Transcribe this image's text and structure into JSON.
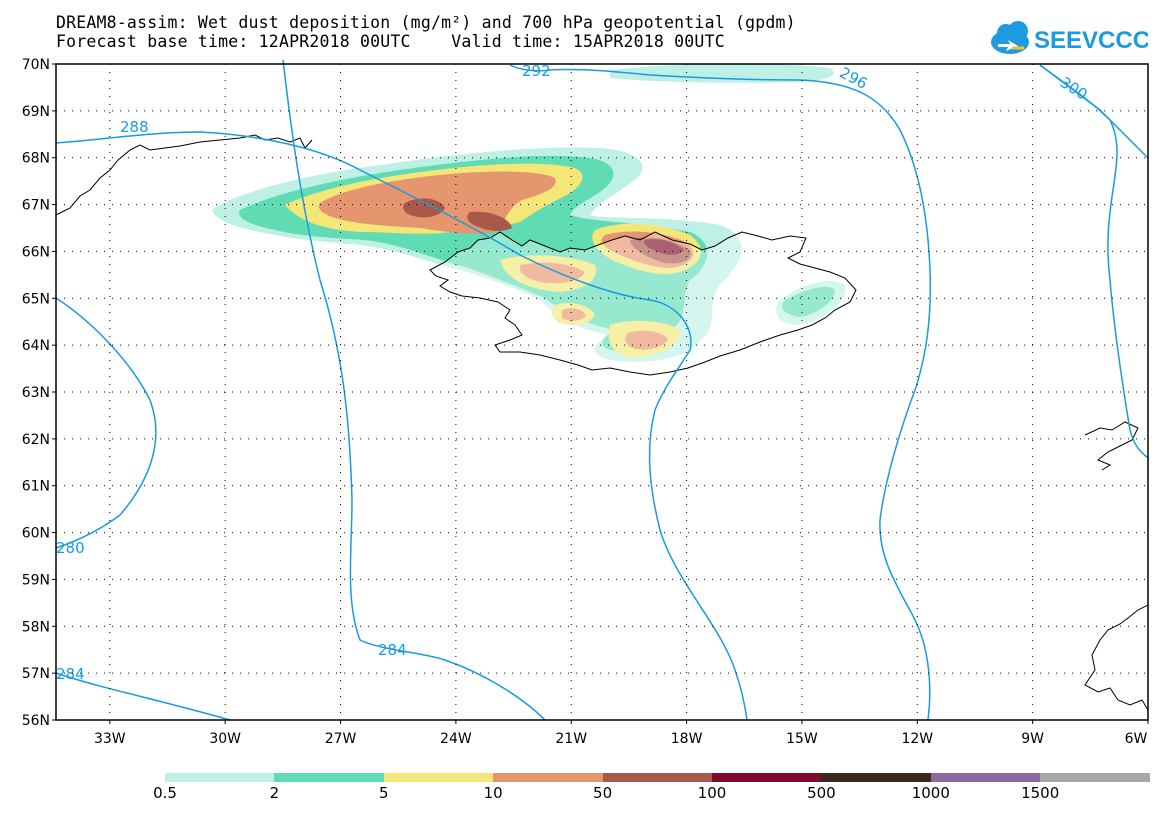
{
  "title": {
    "line1": "DREAM8-assim: Wet dust deposition (mg/m²) and 700 hPa geopotential (gpdm)",
    "line2": "Forecast base time: 12APR2018 00UTC    Valid time: 15APR2018 00UTC"
  },
  "logo": {
    "text": "SEEVCCC",
    "icon": "cloud-icon",
    "color": "#1e9be0"
  },
  "map": {
    "lat_labels": [
      "70N",
      "69N",
      "68N",
      "67N",
      "66N",
      "65N",
      "64N",
      "63N",
      "62N",
      "61N",
      "60N",
      "59N",
      "58N",
      "57N",
      "56N"
    ],
    "lon_labels": [
      "33W",
      "30W",
      "27W",
      "24W",
      "21W",
      "18W",
      "15W",
      "12W",
      "9W",
      "6W"
    ],
    "lat_range": [
      56,
      70
    ],
    "lon_range": [
      -34.4,
      -6
    ],
    "contour_color": "#1a9be0",
    "contour_labels": [
      "292",
      "296",
      "300",
      "288",
      "280",
      "284",
      "284"
    ]
  },
  "legend": {
    "labels": [
      "0.5",
      "2",
      "5",
      "10",
      "50",
      "100",
      "500",
      "1000",
      "1500"
    ],
    "colors": [
      "#bff0e6",
      "#5fdcb4",
      "#f5e678",
      "#e6966e",
      "#a85a4a",
      "#820a2a",
      "#3a2a1e",
      "#8c6a9e",
      "#a8a8a8"
    ]
  }
}
